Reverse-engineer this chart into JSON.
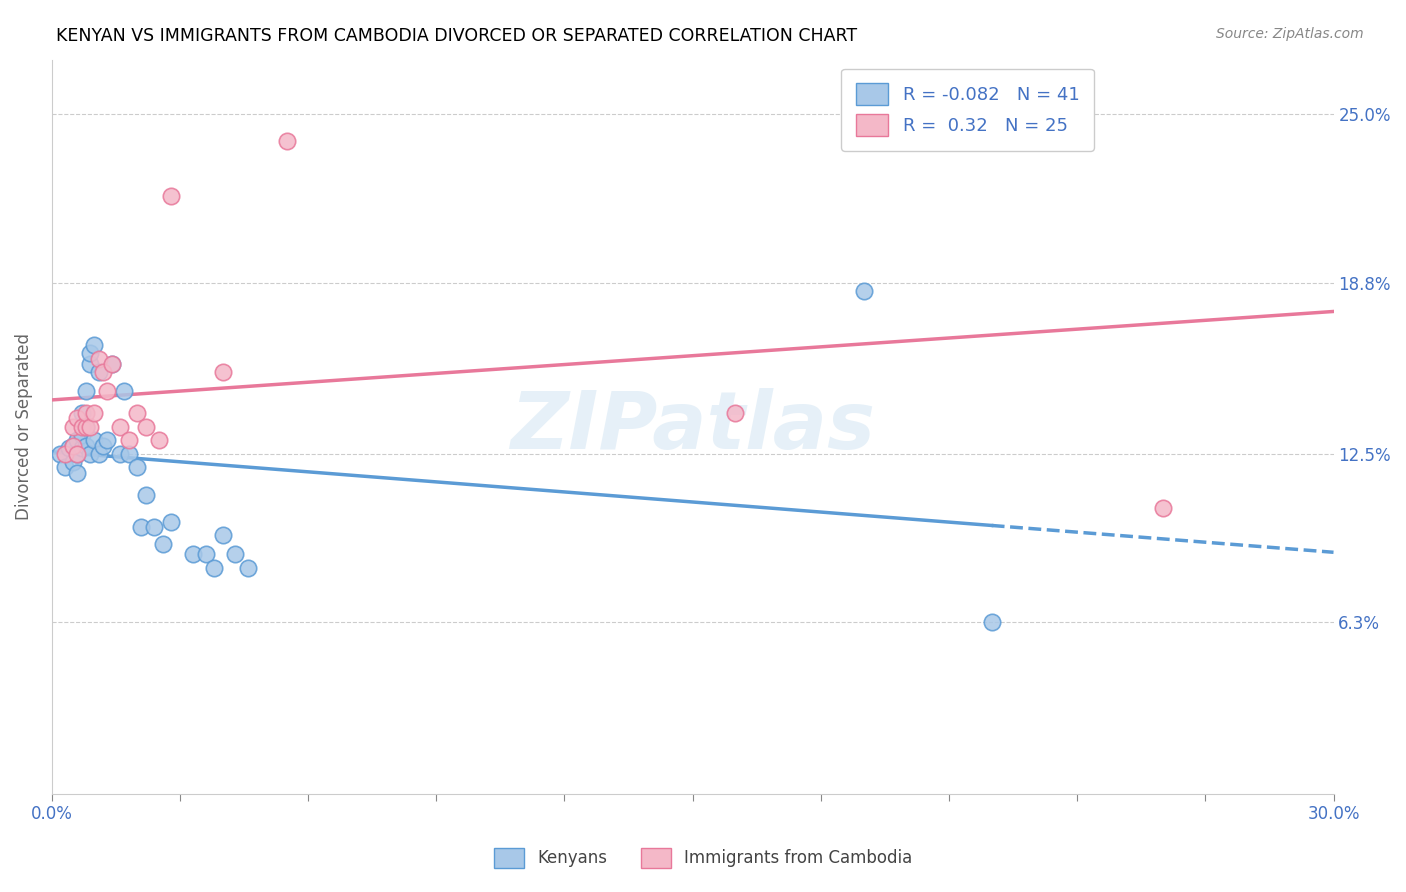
{
  "title": "KENYAN VS IMMIGRANTS FROM CAMBODIA DIVORCED OR SEPARATED CORRELATION CHART",
  "source": "Source: ZipAtlas.com",
  "ylabel": "Divorced or Separated",
  "ytick_labels": [
    "6.3%",
    "12.5%",
    "18.8%",
    "25.0%"
  ],
  "ytick_values": [
    0.063,
    0.125,
    0.188,
    0.25
  ],
  "xmin": 0.0,
  "xmax": 0.3,
  "ymin": 0.0,
  "ymax": 0.27,
  "kenyan_R": -0.082,
  "kenyan_N": 41,
  "cambodia_R": 0.32,
  "cambodia_N": 25,
  "kenyan_color": "#a8c8e8",
  "cambodia_color": "#f4b8c8",
  "kenyan_line_color": "#5b9bd5",
  "cambodia_line_color": "#e8789a",
  "legend_text_color": "#4472c4",
  "watermark": "ZIPatlas",
  "kenyan_x": [
    0.002,
    0.003,
    0.004,
    0.005,
    0.005,
    0.006,
    0.006,
    0.006,
    0.007,
    0.007,
    0.007,
    0.008,
    0.008,
    0.008,
    0.009,
    0.009,
    0.009,
    0.01,
    0.01,
    0.011,
    0.011,
    0.012,
    0.013,
    0.014,
    0.016,
    0.017,
    0.018,
    0.02,
    0.021,
    0.022,
    0.024,
    0.026,
    0.028,
    0.033,
    0.036,
    0.038,
    0.04,
    0.043,
    0.046,
    0.19,
    0.22
  ],
  "kenyan_y": [
    0.125,
    0.12,
    0.127,
    0.122,
    0.128,
    0.118,
    0.125,
    0.13,
    0.127,
    0.132,
    0.14,
    0.128,
    0.135,
    0.148,
    0.125,
    0.158,
    0.162,
    0.165,
    0.13,
    0.155,
    0.125,
    0.128,
    0.13,
    0.158,
    0.125,
    0.148,
    0.125,
    0.12,
    0.098,
    0.11,
    0.098,
    0.092,
    0.1,
    0.088,
    0.088,
    0.083,
    0.095,
    0.088,
    0.083,
    0.185,
    0.063
  ],
  "cambodia_x": [
    0.003,
    0.005,
    0.005,
    0.006,
    0.006,
    0.007,
    0.008,
    0.008,
    0.009,
    0.01,
    0.011,
    0.012,
    0.013,
    0.014,
    0.016,
    0.018,
    0.02,
    0.022,
    0.025,
    0.028,
    0.04,
    0.055,
    0.16,
    0.22,
    0.26
  ],
  "cambodia_y": [
    0.125,
    0.128,
    0.135,
    0.125,
    0.138,
    0.135,
    0.135,
    0.14,
    0.135,
    0.14,
    0.16,
    0.155,
    0.148,
    0.158,
    0.135,
    0.13,
    0.14,
    0.135,
    0.13,
    0.22,
    0.155,
    0.24,
    0.14,
    0.24,
    0.105
  ]
}
